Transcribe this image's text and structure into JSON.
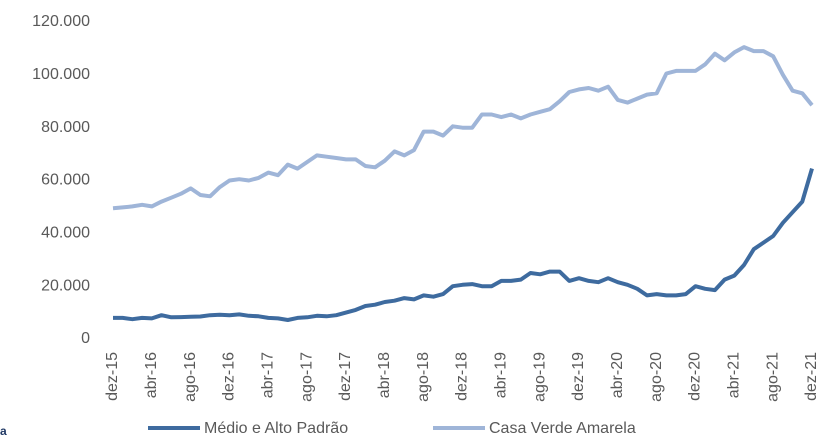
{
  "chart_data": {
    "type": "line",
    "categories": [
      "dez-15",
      null,
      null,
      null,
      "abr-16",
      null,
      null,
      null,
      "ago-16",
      null,
      null,
      null,
      "dez-16",
      null,
      null,
      null,
      "abr-17",
      null,
      null,
      null,
      "ago-17",
      null,
      null,
      null,
      "dez-17",
      null,
      null,
      null,
      "abr-18",
      null,
      null,
      null,
      "ago-18",
      null,
      null,
      null,
      "dez-18",
      null,
      null,
      null,
      "abr-19",
      null,
      null,
      null,
      "ago-19",
      null,
      null,
      null,
      "dez-19",
      null,
      null,
      null,
      "abr-20",
      null,
      null,
      null,
      "ago-20",
      null,
      null,
      null,
      "dez-20",
      null,
      null,
      null,
      "abr-21",
      null,
      null,
      null,
      "ago-21",
      null,
      null,
      null,
      "dez-21"
    ],
    "series": [
      {
        "name": "Médio e Alto Padrão",
        "color": "#3e6b9f",
        "values": [
          8000,
          8000,
          7500,
          8000,
          7800,
          9000,
          8200,
          8300,
          8400,
          8500,
          9000,
          9200,
          9000,
          9300,
          8800,
          8600,
          8000,
          7800,
          7200,
          8000,
          8200,
          8800,
          8600,
          9000,
          10000,
          11000,
          12500,
          13000,
          14000,
          14500,
          15500,
          15000,
          16500,
          16000,
          17000,
          20000,
          20500,
          20800,
          20000,
          20000,
          22000,
          22000,
          22500,
          25000,
          24500,
          25500,
          25500,
          22000,
          23000,
          22000,
          21500,
          23000,
          21500,
          20500,
          19000,
          16500,
          17000,
          16500,
          16500,
          17000,
          20000,
          19000,
          18500,
          22500,
          24000,
          28000,
          34000,
          36500,
          39000,
          44000,
          48000,
          52000,
          64500
        ]
      },
      {
        "name": "Casa Verde Amarela",
        "color": "#9fb5d8",
        "values": [
          49500,
          49800,
          50200,
          50800,
          50200,
          52000,
          53500,
          55000,
          57000,
          54500,
          54000,
          57500,
          60000,
          60500,
          60000,
          61000,
          63000,
          62000,
          66000,
          64500,
          67000,
          69500,
          69000,
          68500,
          68000,
          68000,
          65500,
          65000,
          67500,
          71000,
          69500,
          71500,
          78500,
          78500,
          77000,
          80500,
          80000,
          80000,
          85000,
          85000,
          84000,
          85000,
          83500,
          85000,
          86000,
          87000,
          90000,
          93500,
          94500,
          95000,
          94000,
          95500,
          90500,
          89500,
          91000,
          92500,
          93000,
          100500,
          101500,
          101500,
          101500,
          104000,
          108000,
          105500,
          108500,
          110500,
          109000,
          109000,
          107000,
          100000,
          94000,
          93000,
          88500
        ]
      }
    ],
    "ylim": [
      0,
      120000
    ],
    "yticks": [
      0,
      {
        "value": 20000,
        "label": "20.000"
      },
      {
        "value": 40000,
        "label": "40.000"
      },
      {
        "value": 60000,
        "label": "60.000"
      },
      {
        "value": 80000,
        "label": "80.000"
      },
      {
        "value": 100000,
        "label": "100.000"
      },
      {
        "value": 120000,
        "label": "120.000"
      }
    ],
    "grid": false,
    "legend": "bottom",
    "fragment": "a"
  }
}
